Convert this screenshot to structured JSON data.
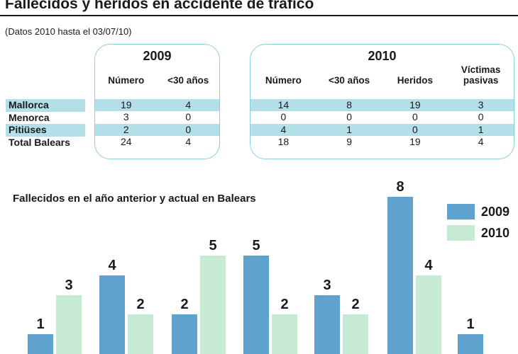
{
  "header": {
    "title": "Fallecidos y heridos en accidente de tráfico",
    "subtitle": "(Datos 2010 hasta el 03/07/10)"
  },
  "tables": {
    "row_labels": [
      "Mallorca",
      "Menorca",
      "Pitiüses",
      "Total Balears"
    ],
    "t2009": {
      "year": "2009",
      "columns": [
        "Número",
        "<30 años"
      ],
      "rows": [
        [
          "19",
          "4"
        ],
        [
          "3",
          "0"
        ],
        [
          "2",
          "0"
        ],
        [
          "24",
          "4"
        ]
      ]
    },
    "t2010": {
      "year": "2010",
      "columns": [
        "Número",
        "<30 años",
        "Heridos",
        "Víctimas pasivas"
      ],
      "rows": [
        [
          "14",
          "8",
          "19",
          "3"
        ],
        [
          "0",
          "0",
          "0",
          "0"
        ],
        [
          "4",
          "1",
          "0",
          "1"
        ],
        [
          "18",
          "9",
          "19",
          "4"
        ]
      ]
    }
  },
  "chart_data": {
    "type": "bar",
    "title": "Fallecidos en el año anterior y actual en Balears",
    "categories": [
      "",
      "",
      "",
      "",
      "",
      "",
      ""
    ],
    "series": [
      {
        "name": "2009",
        "color": "#5fa2cd",
        "values": [
          1,
          4,
          2,
          5,
          3,
          8,
          1
        ]
      },
      {
        "name": "2010",
        "color": "#c7ead4",
        "values": [
          3,
          2,
          5,
          2,
          2,
          4,
          null
        ]
      }
    ],
    "ylim": [
      0,
      8
    ],
    "grid": false,
    "legend_position": "top-right",
    "value_labels": true
  },
  "colors": {
    "highlight_row": "#b3e0e8",
    "box_border": "#8fcddb",
    "bar_2009": "#5fa2cd",
    "bar_2010": "#c7ead4",
    "rule": "#1a1a1a"
  }
}
